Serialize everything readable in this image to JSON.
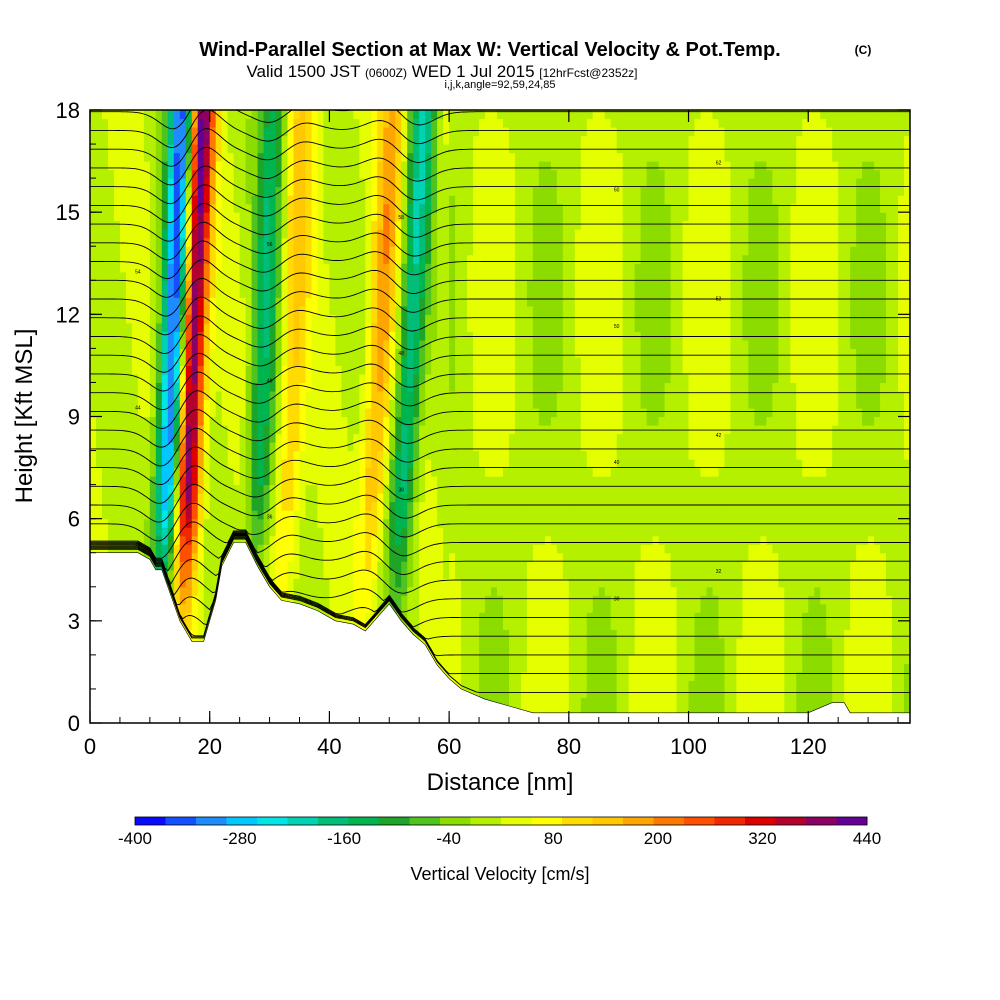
{
  "title": "Wind-Parallel Section at Max W: Vertical Velocity & Pot.Temp.",
  "title_mark": "(C)",
  "subtitle_valid": "Valid 1500 JST",
  "subtitle_utc": "(0600Z)",
  "subtitle_date": "WED 1 Jul 2015",
  "subtitle_fcst": "[12hrFcst@2352z]",
  "subtitle_grid": "i,j,k,angle=92,59,24,85",
  "chart_data": {
    "type": "heatmap",
    "xlabel": "Distance [nm]",
    "ylabel": "Height [Kft MSL]",
    "xlim": [
      0,
      137
    ],
    "ylim": [
      0,
      18
    ],
    "x_ticks": [
      0,
      20,
      40,
      60,
      80,
      100,
      120
    ],
    "y_ticks": [
      0,
      3,
      6,
      9,
      12,
      15,
      18
    ],
    "colorbar": {
      "label": "Vertical Velocity [cm/s]",
      "tick_values": [
        -400,
        -280,
        -160,
        -40,
        80,
        200,
        320,
        440
      ],
      "range": [
        -400,
        440
      ],
      "step": 40,
      "colors": [
        "#0a0aff",
        "#1450ff",
        "#1e8cff",
        "#00c8ff",
        "#00e6e6",
        "#00d2b4",
        "#00be78",
        "#00b450",
        "#1ea528",
        "#50c31e",
        "#8cdc00",
        "#b4f000",
        "#e6ff00",
        "#ffff00",
        "#ffdc00",
        "#ffc800",
        "#ffa500",
        "#ff7800",
        "#ff5000",
        "#f02800",
        "#dc0000",
        "#b4002d",
        "#8c0064",
        "#640096"
      ]
    },
    "updraft_cores": [
      {
        "x": 16,
        "w_max": 440
      },
      {
        "x": 47,
        "w_max": 160
      },
      {
        "x": 33,
        "w_max": 120
      }
    ],
    "downdraft_cores": [
      {
        "x": 13,
        "w_min": -400
      },
      {
        "x": 28,
        "w_min": -160
      },
      {
        "x": 52,
        "w_min": -200
      }
    ],
    "terrain_height_kft": [
      [
        0,
        5.0
      ],
      [
        5,
        5.0
      ],
      [
        8,
        5.0
      ],
      [
        10,
        4.8
      ],
      [
        11,
        4.5
      ],
      [
        12,
        4.5
      ],
      [
        13,
        4.0
      ],
      [
        14,
        3.5
      ],
      [
        15,
        3.0
      ],
      [
        16,
        2.7
      ],
      [
        17,
        2.4
      ],
      [
        19,
        2.4
      ],
      [
        20,
        3.0
      ],
      [
        21,
        3.6
      ],
      [
        22,
        4.6
      ],
      [
        24,
        5.3
      ],
      [
        26,
        5.3
      ],
      [
        28,
        4.6
      ],
      [
        30,
        4.0
      ],
      [
        32,
        3.6
      ],
      [
        35,
        3.5
      ],
      [
        38,
        3.3
      ],
      [
        41,
        3.0
      ],
      [
        44,
        2.9
      ],
      [
        46,
        2.7
      ],
      [
        48,
        3.1
      ],
      [
        50,
        3.5
      ],
      [
        52,
        3.0
      ],
      [
        54,
        2.6
      ],
      [
        56,
        2.3
      ],
      [
        58,
        1.7
      ],
      [
        60,
        1.3
      ],
      [
        62,
        1.0
      ],
      [
        66,
        0.7
      ],
      [
        70,
        0.5
      ],
      [
        74,
        0.3
      ],
      [
        120,
        0.3
      ],
      [
        124,
        0.6
      ],
      [
        126,
        0.6
      ],
      [
        127,
        0.3
      ],
      [
        137,
        0.3
      ]
    ],
    "theta_contours": {
      "levels_k": [
        24,
        26,
        28,
        30,
        32,
        34,
        36,
        38,
        40,
        42,
        44,
        46,
        48,
        50,
        52,
        54,
        56,
        58,
        60,
        62
      ],
      "labels": [
        "24",
        "26",
        "28",
        "30",
        "32",
        "34",
        "36",
        "38",
        "40",
        "42",
        "44",
        "46",
        "48",
        "50",
        "52",
        "54",
        "56",
        "58",
        "60",
        "62"
      ]
    }
  }
}
